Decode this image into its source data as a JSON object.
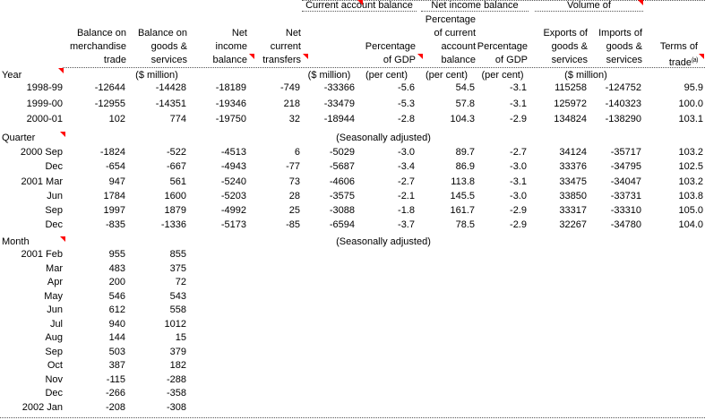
{
  "app": {
    "background_color": "#ffffff",
    "marker_color": "#ff0000"
  },
  "table": {
    "group_headers": [
      {
        "label": "Current account balance",
        "marker": true
      },
      {
        "label": "Net income balance",
        "marker": false
      },
      {
        "label": "Volume of",
        "marker": true
      }
    ],
    "column_headers": [
      {
        "lines": [
          "Balance on",
          "merchandise",
          "trade"
        ],
        "marker": false
      },
      {
        "lines": [
          "Balance on",
          "goods &",
          "services"
        ],
        "marker": false
      },
      {
        "lines": [
          "Net",
          "income",
          "balance"
        ],
        "marker": true
      },
      {
        "lines": [
          "Net",
          "current",
          "transfers"
        ],
        "marker": true
      },
      {
        "lines": [],
        "marker": false
      },
      {
        "lines": [
          "Percentage",
          "of GDP"
        ],
        "marker": true
      },
      {
        "lines": [
          "Percentage",
          "of current",
          "account",
          "balance"
        ],
        "marker": false
      },
      {
        "lines": [
          "Percentage",
          "of GDP"
        ],
        "marker": false
      },
      {
        "lines": [
          "Exports of",
          "goods &",
          "services"
        ],
        "marker": false
      },
      {
        "lines": [
          "Imports of",
          "goods &",
          "services"
        ],
        "marker": false
      },
      {
        "lines": [
          "Terms of",
          "trade"
        ],
        "sup": "(a)",
        "marker": true
      }
    ],
    "units": {
      "col2_4": "($ million)",
      "col6": "($ million)",
      "col7": "(per cent)",
      "col8": "(per cent)",
      "col9": "(per cent)",
      "col10_11": "($ million)"
    },
    "sections": [
      {
        "label": "Year",
        "marker": true,
        "note": "",
        "rows": [
          [
            "1998-99",
            "-12644",
            "-14428",
            "-18189",
            "-749",
            "-33366",
            "-5.6",
            "54.5",
            "-3.1",
            "115258",
            "-124752",
            "95.9"
          ],
          [
            "1999-00",
            "-12955",
            "-14351",
            "-19346",
            "218",
            "-33479",
            "-5.3",
            "57.8",
            "-3.1",
            "125972",
            "-140323",
            "100.0"
          ],
          [
            "2000-01",
            "102",
            "774",
            "-19750",
            "32",
            "-18944",
            "-2.8",
            "104.3",
            "-2.9",
            "134824",
            "-138290",
            "103.1"
          ]
        ]
      },
      {
        "label": "Quarter",
        "marker": true,
        "note": "(Seasonally adjusted)",
        "rows": [
          [
            "2000 Sep",
            "-1824",
            "-522",
            "-4513",
            "6",
            "-5029",
            "-3.0",
            "89.7",
            "-2.7",
            "34124",
            "-35717",
            "103.2"
          ],
          [
            "Dec",
            "-654",
            "-667",
            "-4943",
            "-77",
            "-5687",
            "-3.4",
            "86.9",
            "-3.0",
            "33376",
            "-34795",
            "102.5"
          ],
          [
            "2001 Mar",
            "947",
            "561",
            "-5240",
            "73",
            "-4606",
            "-2.7",
            "113.8",
            "-3.1",
            "33475",
            "-34047",
            "103.2"
          ],
          [
            "Jun",
            "1784",
            "1600",
            "-5203",
            "28",
            "-3575",
            "-2.1",
            "145.5",
            "-3.0",
            "33850",
            "-33731",
            "103.8"
          ],
          [
            "Sep",
            "1997",
            "1879",
            "-4992",
            "25",
            "-3088",
            "-1.8",
            "161.7",
            "-2.9",
            "33317",
            "-33310",
            "105.0"
          ],
          [
            "Dec",
            "-835",
            "-1336",
            "-5173",
            "-85",
            "-6594",
            "-3.7",
            "78.5",
            "-2.9",
            "32267",
            "-34780",
            "104.0"
          ]
        ]
      },
      {
        "label": "Month",
        "marker": true,
        "note": "(Seasonally adjusted)",
        "rows": [
          [
            "2001 Feb",
            "955",
            "855"
          ],
          [
            "Mar",
            "483",
            "375"
          ],
          [
            "Apr",
            "200",
            "72"
          ],
          [
            "May",
            "546",
            "543"
          ],
          [
            "Jun",
            "612",
            "558"
          ],
          [
            "Jul",
            "940",
            "1012"
          ],
          [
            "Aug",
            "144",
            "15"
          ],
          [
            "Sep",
            "503",
            "379"
          ],
          [
            "Oct",
            "387",
            "182"
          ],
          [
            "Nov",
            "-115",
            "-288"
          ],
          [
            "Dec",
            "-266",
            "-358"
          ],
          [
            "2002 Jan",
            "-208",
            "-308"
          ]
        ]
      }
    ]
  }
}
